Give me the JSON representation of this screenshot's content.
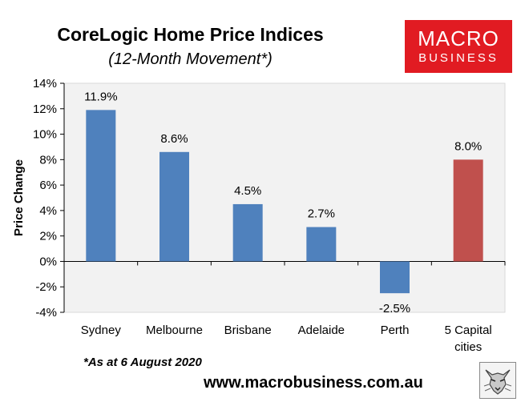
{
  "logo": {
    "line1": "MACRO",
    "line2": "BUSINESS",
    "color": "#e11b22"
  },
  "footnote": "*As at 6 August 2020",
  "website": "www.macrobusiness.com.au",
  "chart_data": {
    "type": "bar",
    "title": "CoreLogic Home Price Indices",
    "subtitle": "(12-Month Movement*)",
    "ylabel": "Price Change",
    "xlabel": "",
    "categories": [
      "Sydney",
      "Melbourne",
      "Brisbane",
      "Adelaide",
      "Perth",
      "5 Capital\ncities"
    ],
    "values": [
      11.9,
      8.6,
      4.5,
      2.7,
      -2.5,
      8.0
    ],
    "data_labels": [
      "11.9%",
      "8.6%",
      "4.5%",
      "2.7%",
      "-2.5%",
      "8.0%"
    ],
    "bar_colors": [
      "#4f81bd",
      "#4f81bd",
      "#4f81bd",
      "#4f81bd",
      "#4f81bd",
      "#c0504d"
    ],
    "ylim": [
      -4,
      14
    ],
    "yticks": [
      -4,
      -2,
      0,
      2,
      4,
      6,
      8,
      10,
      12,
      14
    ],
    "ytick_labels": [
      "-4%",
      "-2%",
      "0%",
      "2%",
      "4%",
      "6%",
      "8%",
      "10%",
      "12%",
      "14%"
    ],
    "plot_background": "#f2f2f2",
    "grid": false,
    "legend": "none"
  }
}
